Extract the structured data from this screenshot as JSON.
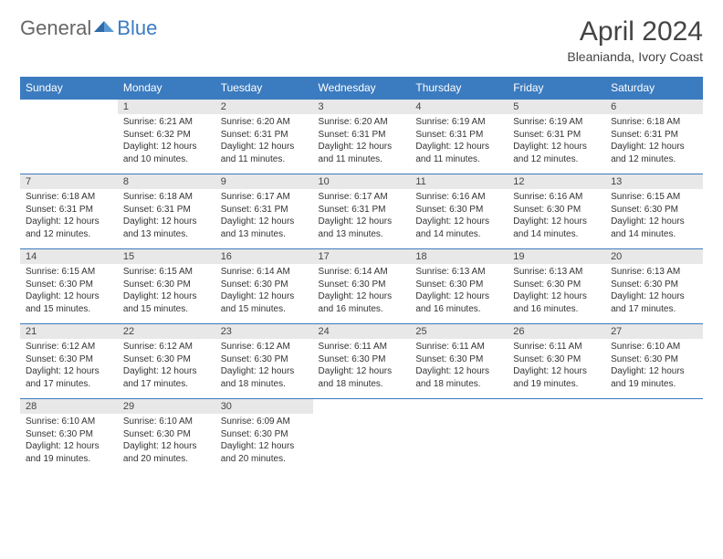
{
  "brand": {
    "part1": "General",
    "part2": "Blue"
  },
  "title": "April 2024",
  "subtitle": "Bleanianda, Ivory Coast",
  "colors": {
    "header_bg": "#3b7bbf",
    "header_text": "#ffffff",
    "daynum_bg": "#e8e8e8",
    "border": "#3b7bbf",
    "text": "#333333",
    "background": "#ffffff"
  },
  "weekdays": [
    "Sunday",
    "Monday",
    "Tuesday",
    "Wednesday",
    "Thursday",
    "Friday",
    "Saturday"
  ],
  "weeks": [
    [
      null,
      {
        "n": "1",
        "sunrise": "6:21 AM",
        "sunset": "6:32 PM",
        "daylight": "12 hours and 10 minutes."
      },
      {
        "n": "2",
        "sunrise": "6:20 AM",
        "sunset": "6:31 PM",
        "daylight": "12 hours and 11 minutes."
      },
      {
        "n": "3",
        "sunrise": "6:20 AM",
        "sunset": "6:31 PM",
        "daylight": "12 hours and 11 minutes."
      },
      {
        "n": "4",
        "sunrise": "6:19 AM",
        "sunset": "6:31 PM",
        "daylight": "12 hours and 11 minutes."
      },
      {
        "n": "5",
        "sunrise": "6:19 AM",
        "sunset": "6:31 PM",
        "daylight": "12 hours and 12 minutes."
      },
      {
        "n": "6",
        "sunrise": "6:18 AM",
        "sunset": "6:31 PM",
        "daylight": "12 hours and 12 minutes."
      }
    ],
    [
      {
        "n": "7",
        "sunrise": "6:18 AM",
        "sunset": "6:31 PM",
        "daylight": "12 hours and 12 minutes."
      },
      {
        "n": "8",
        "sunrise": "6:18 AM",
        "sunset": "6:31 PM",
        "daylight": "12 hours and 13 minutes."
      },
      {
        "n": "9",
        "sunrise": "6:17 AM",
        "sunset": "6:31 PM",
        "daylight": "12 hours and 13 minutes."
      },
      {
        "n": "10",
        "sunrise": "6:17 AM",
        "sunset": "6:31 PM",
        "daylight": "12 hours and 13 minutes."
      },
      {
        "n": "11",
        "sunrise": "6:16 AM",
        "sunset": "6:30 PM",
        "daylight": "12 hours and 14 minutes."
      },
      {
        "n": "12",
        "sunrise": "6:16 AM",
        "sunset": "6:30 PM",
        "daylight": "12 hours and 14 minutes."
      },
      {
        "n": "13",
        "sunrise": "6:15 AM",
        "sunset": "6:30 PM",
        "daylight": "12 hours and 14 minutes."
      }
    ],
    [
      {
        "n": "14",
        "sunrise": "6:15 AM",
        "sunset": "6:30 PM",
        "daylight": "12 hours and 15 minutes."
      },
      {
        "n": "15",
        "sunrise": "6:15 AM",
        "sunset": "6:30 PM",
        "daylight": "12 hours and 15 minutes."
      },
      {
        "n": "16",
        "sunrise": "6:14 AM",
        "sunset": "6:30 PM",
        "daylight": "12 hours and 15 minutes."
      },
      {
        "n": "17",
        "sunrise": "6:14 AM",
        "sunset": "6:30 PM",
        "daylight": "12 hours and 16 minutes."
      },
      {
        "n": "18",
        "sunrise": "6:13 AM",
        "sunset": "6:30 PM",
        "daylight": "12 hours and 16 minutes."
      },
      {
        "n": "19",
        "sunrise": "6:13 AM",
        "sunset": "6:30 PM",
        "daylight": "12 hours and 16 minutes."
      },
      {
        "n": "20",
        "sunrise": "6:13 AM",
        "sunset": "6:30 PM",
        "daylight": "12 hours and 17 minutes."
      }
    ],
    [
      {
        "n": "21",
        "sunrise": "6:12 AM",
        "sunset": "6:30 PM",
        "daylight": "12 hours and 17 minutes."
      },
      {
        "n": "22",
        "sunrise": "6:12 AM",
        "sunset": "6:30 PM",
        "daylight": "12 hours and 17 minutes."
      },
      {
        "n": "23",
        "sunrise": "6:12 AM",
        "sunset": "6:30 PM",
        "daylight": "12 hours and 18 minutes."
      },
      {
        "n": "24",
        "sunrise": "6:11 AM",
        "sunset": "6:30 PM",
        "daylight": "12 hours and 18 minutes."
      },
      {
        "n": "25",
        "sunrise": "6:11 AM",
        "sunset": "6:30 PM",
        "daylight": "12 hours and 18 minutes."
      },
      {
        "n": "26",
        "sunrise": "6:11 AM",
        "sunset": "6:30 PM",
        "daylight": "12 hours and 19 minutes."
      },
      {
        "n": "27",
        "sunrise": "6:10 AM",
        "sunset": "6:30 PM",
        "daylight": "12 hours and 19 minutes."
      }
    ],
    [
      {
        "n": "28",
        "sunrise": "6:10 AM",
        "sunset": "6:30 PM",
        "daylight": "12 hours and 19 minutes."
      },
      {
        "n": "29",
        "sunrise": "6:10 AM",
        "sunset": "6:30 PM",
        "daylight": "12 hours and 20 minutes."
      },
      {
        "n": "30",
        "sunrise": "6:09 AM",
        "sunset": "6:30 PM",
        "daylight": "12 hours and 20 minutes."
      },
      null,
      null,
      null,
      null
    ]
  ],
  "labels": {
    "sunrise": "Sunrise:",
    "sunset": "Sunset:",
    "daylight": "Daylight:"
  }
}
